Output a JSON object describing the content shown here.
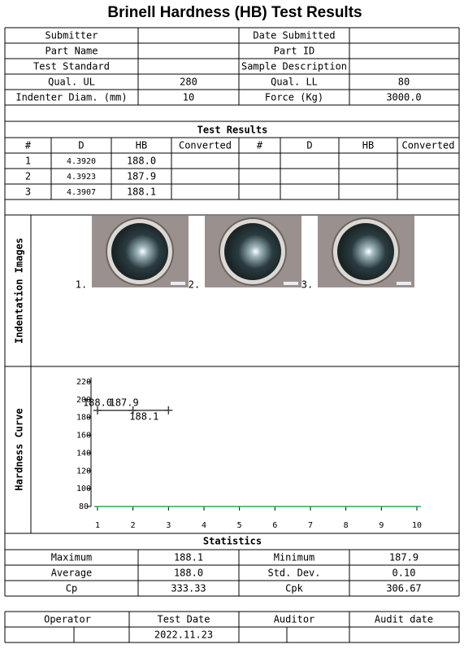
{
  "title": "Brinell Hardness (HB) Test Results",
  "info": {
    "submitter_label": "Submitter",
    "date_submitted_label": "Date Submitted",
    "part_name_label": "Part Name",
    "part_id_label": "Part ID",
    "test_standard_label": "Test Standard",
    "sample_description_label": "Sample Description",
    "qual_ul_label": "Qual. UL",
    "qual_ul": 280,
    "qual_ll_label": "Qual. LL",
    "qual_ll": 80,
    "indenter_label": "Indenter Diam. (mm)",
    "indenter": 10,
    "force_label": "Force (Kg)",
    "force": "3000.0"
  },
  "results": {
    "title": "Test Results",
    "headers": [
      "#",
      "D",
      "HB",
      "Converted",
      "#",
      "D",
      "HB",
      "Converted"
    ],
    "rows": [
      [
        1,
        "4.3920",
        "188.0"
      ],
      [
        2,
        "4.3923",
        "187.9"
      ],
      [
        3,
        "4.3907",
        "188.1"
      ]
    ]
  },
  "images": {
    "label": "Indentation Images",
    "captions": [
      "1.",
      "2.",
      "3."
    ]
  },
  "curve_label": "Hardness Curve",
  "chart_data": {
    "type": "line",
    "x": [
      1,
      2,
      3
    ],
    "values": [
      188.0,
      187.9,
      188.1
    ],
    "value_labels": [
      "188.0",
      "187.9",
      "188.1"
    ],
    "color": "#404040",
    "label_color": "#1f1fbf",
    "xlim": [
      1,
      10
    ],
    "xticks": [
      1,
      2,
      3,
      4,
      5,
      6,
      7,
      8,
      9,
      10
    ],
    "ylim": [
      80,
      225
    ],
    "yticks": [
      80,
      100,
      120,
      140,
      160,
      180,
      200,
      220
    ],
    "reference_lines": [
      {
        "value": 80,
        "color": "#22b14c"
      }
    ]
  },
  "statistics": {
    "title": "Statistics",
    "rows": [
      [
        "Maximum",
        "188.1",
        "Minimum",
        "187.9"
      ],
      [
        "Average",
        "188.0",
        "Std. Dev.",
        "0.10"
      ],
      [
        "Cp",
        "333.33",
        "Cpk",
        "306.67"
      ]
    ]
  },
  "footer": {
    "operator_label": "Operator",
    "test_date_label": "Test Date",
    "auditor_label": "Auditor",
    "audit_date_label": "Audit date",
    "test_date": "2022.11.23"
  }
}
